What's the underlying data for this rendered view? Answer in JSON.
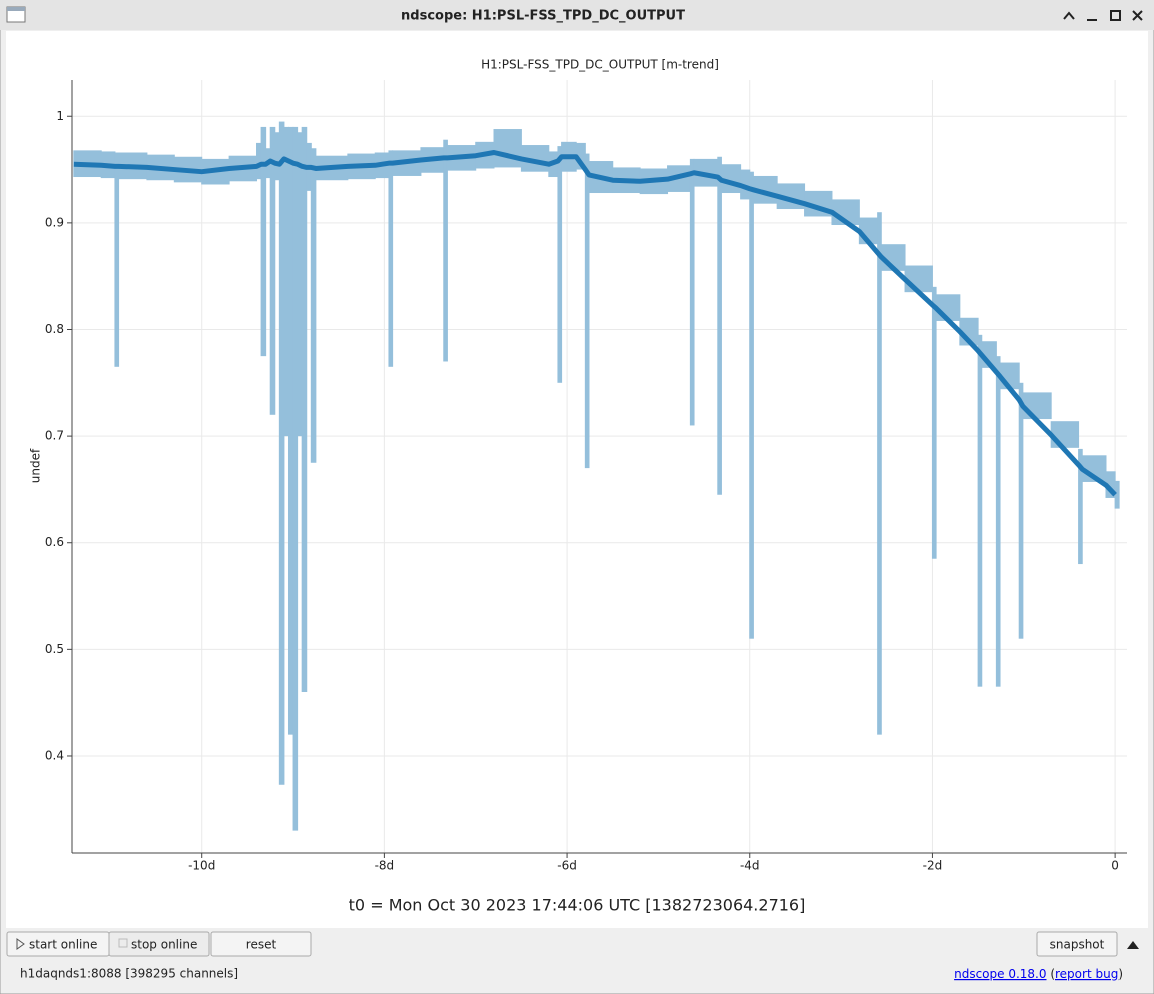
{
  "window": {
    "title": "ndscope: H1:PSL-FSS_TPD_DC_OUTPUT"
  },
  "chart_data": {
    "type": "line",
    "title": "H1:PSL-FSS_TPD_DC_OUTPUT [m-trend]",
    "x_label": "t0 = Mon Oct 30 2023 17:44:06 UTC [1382723064.2716]",
    "y_label": "undef",
    "xlim": [
      -11.42,
      0.13
    ],
    "ylim": [
      0.309,
      1.034
    ],
    "xticks": [
      {
        "value": -10,
        "label": "-10d"
      },
      {
        "value": -8,
        "label": "-8d"
      },
      {
        "value": -6,
        "label": "-6d"
      },
      {
        "value": -4,
        "label": "-4d"
      },
      {
        "value": -2,
        "label": "-2d"
      },
      0
    ],
    "yticks": [
      0.4,
      0.5,
      0.6,
      0.7,
      0.8,
      0.9,
      1
    ],
    "grid": true,
    "x": [
      -11.4,
      -11.1,
      -10.95,
      -10.91,
      -10.6,
      -10.3,
      -10.0,
      -9.7,
      -9.4,
      -9.35,
      -9.3,
      -9.25,
      -9.2,
      -9.15,
      -9.1,
      -9.05,
      -9.0,
      -8.95,
      -8.9,
      -8.85,
      -8.8,
      -8.75,
      -8.4,
      -8.1,
      -7.95,
      -7.91,
      -7.6,
      -7.35,
      -7.31,
      -7.0,
      -6.8,
      -6.5,
      -6.2,
      -6.1,
      -6.06,
      -5.9,
      -5.8,
      -5.76,
      -5.5,
      -5.2,
      -4.9,
      -4.65,
      -4.61,
      -4.35,
      -4.31,
      -4.1,
      -4.0,
      -3.96,
      -3.7,
      -3.4,
      -3.1,
      -2.8,
      -2.6,
      -2.56,
      -2.3,
      -2.0,
      -1.96,
      -1.7,
      -1.5,
      -1.46,
      -1.3,
      -1.26,
      -1.05,
      -1.01,
      -0.7,
      -0.4,
      -0.36,
      -0.1,
      0.0
    ],
    "series": [
      {
        "color": "#1f77b4",
        "values": [
          0.955,
          0.954,
          0.953,
          0.953,
          0.952,
          0.95,
          0.948,
          0.951,
          0.953,
          0.955,
          0.955,
          0.958,
          0.956,
          0.955,
          0.96,
          0.958,
          0.956,
          0.955,
          0.953,
          0.952,
          0.952,
          0.951,
          0.953,
          0.954,
          0.956,
          0.956,
          0.959,
          0.961,
          0.961,
          0.963,
          0.966,
          0.96,
          0.955,
          0.958,
          0.962,
          0.962,
          0.95,
          0.945,
          0.94,
          0.939,
          0.941,
          0.946,
          0.947,
          0.943,
          0.94,
          0.935,
          0.932,
          0.931,
          0.925,
          0.918,
          0.91,
          0.892,
          0.872,
          0.868,
          0.847,
          0.823,
          0.82,
          0.798,
          0.78,
          0.776,
          0.76,
          0.756,
          0.734,
          0.728,
          0.701,
          0.673,
          0.669,
          0.654,
          0.645
        ]
      },
      {
        "color": "#94bfdb",
        "values": [
          0.943,
          0.942,
          0.765,
          0.941,
          0.94,
          0.938,
          0.936,
          0.939,
          0.941,
          0.775,
          0.942,
          0.72,
          0.94,
          0.373,
          0.7,
          0.42,
          0.33,
          0.7,
          0.46,
          0.93,
          0.675,
          0.94,
          0.941,
          0.942,
          0.765,
          0.944,
          0.947,
          0.77,
          0.949,
          0.951,
          0.952,
          0.948,
          0.943,
          0.75,
          0.948,
          0.95,
          0.67,
          0.928,
          0.928,
          0.927,
          0.929,
          0.71,
          0.934,
          0.645,
          0.928,
          0.922,
          0.51,
          0.918,
          0.913,
          0.906,
          0.898,
          0.88,
          0.42,
          0.855,
          0.835,
          0.585,
          0.808,
          0.785,
          0.465,
          0.764,
          0.465,
          0.744,
          0.51,
          0.716,
          0.689,
          0.58,
          0.657,
          0.642,
          0.632
        ]
      },
      {
        "color": "#94bfdb",
        "values": [
          0.968,
          0.967,
          0.966,
          0.966,
          0.964,
          0.962,
          0.96,
          0.963,
          0.975,
          0.99,
          0.97,
          0.99,
          0.985,
          0.995,
          0.99,
          0.99,
          0.99,
          0.985,
          0.99,
          0.975,
          0.97,
          0.963,
          0.965,
          0.966,
          0.968,
          0.968,
          0.971,
          0.978,
          0.973,
          0.976,
          0.988,
          0.973,
          0.967,
          0.972,
          0.976,
          0.975,
          0.965,
          0.958,
          0.952,
          0.951,
          0.954,
          0.96,
          0.96,
          0.962,
          0.955,
          0.95,
          0.948,
          0.944,
          0.937,
          0.93,
          0.922,
          0.905,
          0.91,
          0.88,
          0.86,
          0.84,
          0.833,
          0.811,
          0.795,
          0.789,
          0.775,
          0.769,
          0.75,
          0.741,
          0.714,
          0.688,
          0.682,
          0.667,
          0.658
        ]
      }
    ]
  },
  "controls": {
    "buttons": [
      {
        "label": "start online",
        "enabled": true
      },
      {
        "label": "stop online",
        "enabled": false
      },
      {
        "label": "reset",
        "enabled": true
      },
      {
        "label": "snapshot",
        "enabled": true
      }
    ]
  },
  "status": {
    "server": "h1daqnds1:8088  [398295 channels]",
    "right": [
      "ndscope 0.18.0",
      " (",
      "report bug",
      ")"
    ]
  }
}
